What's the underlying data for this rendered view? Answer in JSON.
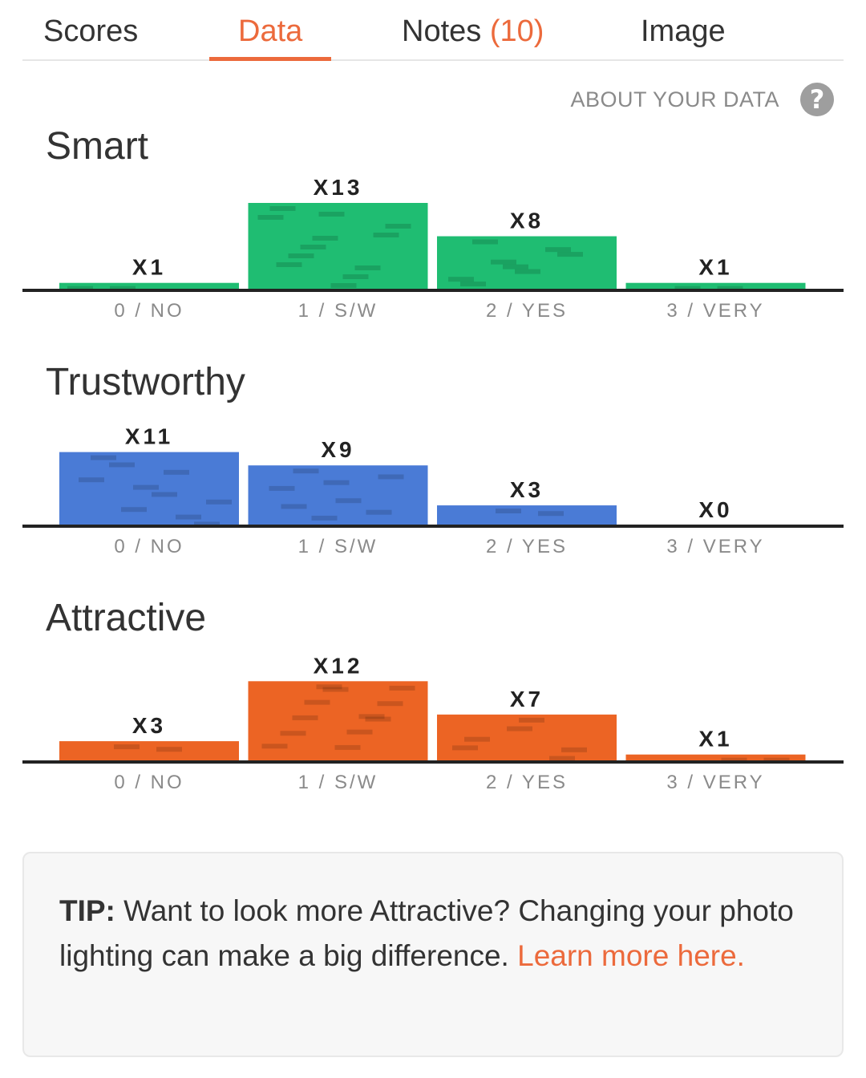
{
  "tabs": [
    {
      "label": "Scores",
      "count": ""
    },
    {
      "label": "Data",
      "count": ""
    },
    {
      "label": "Notes",
      "count": "(10)"
    },
    {
      "label": "Image",
      "count": ""
    }
  ],
  "active_tab": "Data",
  "about": {
    "label": "ABOUT YOUR DATA",
    "help_glyph": "?"
  },
  "colors": {
    "accent": "#ec6a3c",
    "smart": "#1fbd72",
    "trustworthy": "#4a7bd6",
    "attractive": "#ec6424"
  },
  "chart_data": [
    {
      "type": "bar",
      "title": "Smart",
      "categories": [
        "0 / NO",
        "1 / S/W",
        "2 / YES",
        "3 / VERY"
      ],
      "values": [
        1,
        13,
        8,
        1
      ],
      "value_labels": [
        "X1",
        "X13",
        "X8",
        "X1"
      ],
      "color": "#1fbd72"
    },
    {
      "type": "bar",
      "title": "Trustworthy",
      "categories": [
        "0 / NO",
        "1 / S/W",
        "2 / YES",
        "3 / VERY"
      ],
      "values": [
        11,
        9,
        3,
        0
      ],
      "value_labels": [
        "X11",
        "X9",
        "X3",
        "X0"
      ],
      "color": "#4a7bd6"
    },
    {
      "type": "bar",
      "title": "Attractive",
      "categories": [
        "0 / NO",
        "1 / S/W",
        "2 / YES",
        "3 / VERY"
      ],
      "values": [
        3,
        12,
        7,
        1
      ],
      "value_labels": [
        "X3",
        "X12",
        "X7",
        "X1"
      ],
      "color": "#ec6424"
    }
  ],
  "tip": {
    "label": "TIP:",
    "text": " Want to look more Attractive? Changing your photo lighting can make a big difference. ",
    "link": "Learn more here."
  }
}
